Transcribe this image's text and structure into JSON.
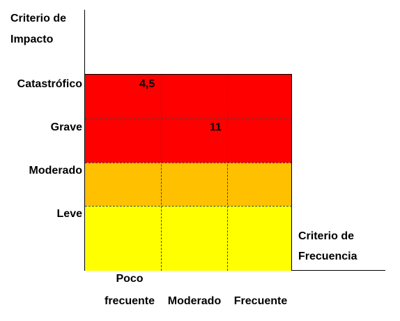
{
  "y_axis_title": [
    "Criterio de",
    "Impacto"
  ],
  "x_axis_title": [
    "Criterio de",
    "Frecuencia"
  ],
  "impact_levels": [
    "Catastrófico",
    "Grave",
    "Moderado",
    "Leve"
  ],
  "frequency_levels": [
    {
      "line1": "Poco",
      "line2": "frecuente"
    },
    {
      "line1": "",
      "line2": "Moderado"
    },
    {
      "line1": "",
      "line2": "Frecuente"
    }
  ],
  "colors": {
    "high": "#ff0000",
    "medium": "#ffc000",
    "low": "#ffff00"
  },
  "matrix": [
    {
      "impact": "Catastrófico",
      "level": "high",
      "values": [
        "4,5",
        "",
        ""
      ]
    },
    {
      "impact": "Grave",
      "level": "high",
      "values": [
        "",
        "11",
        ""
      ]
    },
    {
      "impact": "Moderado",
      "level": "medium",
      "values": [
        "",
        "",
        ""
      ]
    },
    {
      "impact": "Leve",
      "level": "low",
      "values": [
        "",
        "",
        ""
      ]
    }
  ]
}
